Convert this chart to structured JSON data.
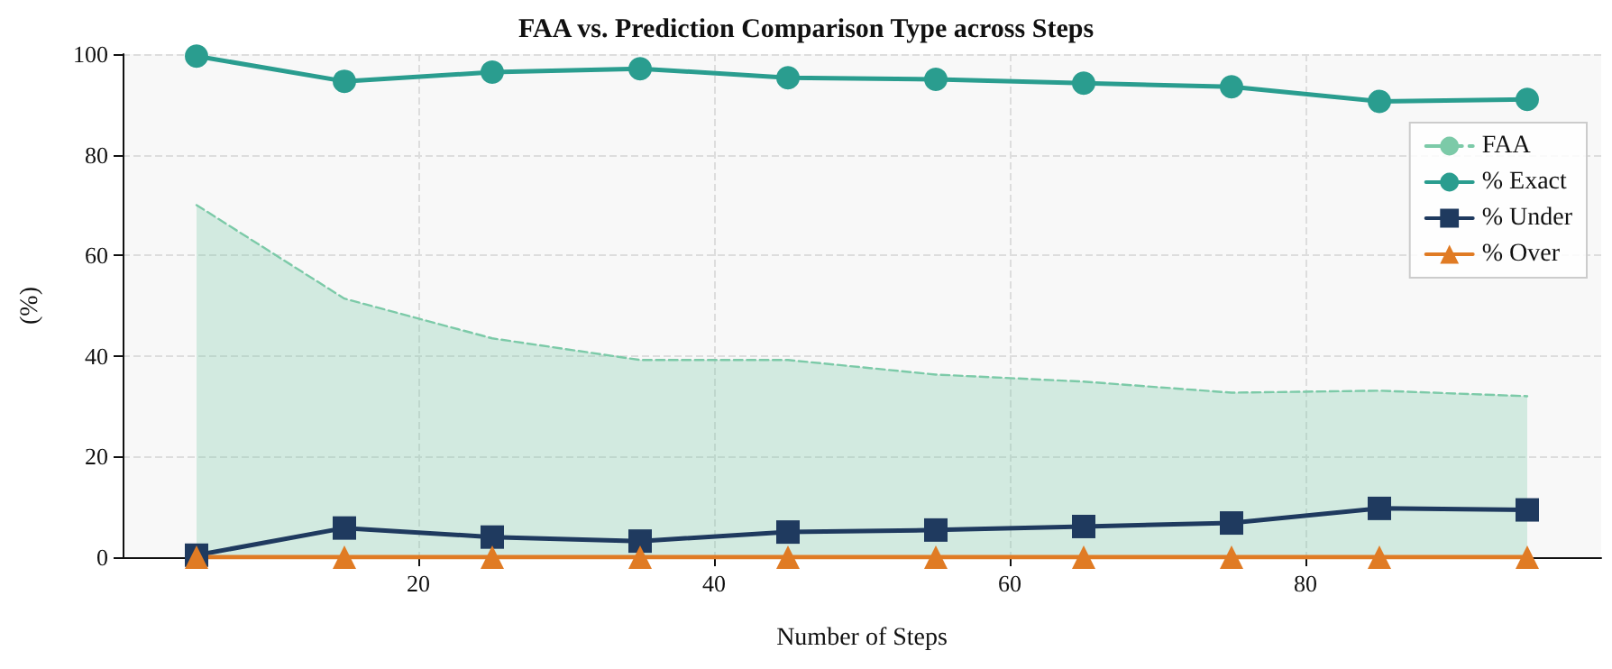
{
  "chart_data": {
    "type": "line",
    "title": "FAA vs. Prediction Comparison Type across Steps",
    "xlabel": "Number of Steps",
    "ylabel": "(%)",
    "x": [
      5,
      15,
      25,
      35,
      45,
      55,
      65,
      75,
      85,
      95
    ],
    "series": [
      {
        "name": "FAA",
        "type": "area",
        "color": "#7ccaa8",
        "line_style": "dashed",
        "marker": "none",
        "values": [
          70,
          51.4,
          43.5,
          39.2,
          39.2,
          36.3,
          34.9,
          32.7,
          33.1,
          32
        ]
      },
      {
        "name": "% Exact",
        "color": "#2a9d8f",
        "marker": "circle",
        "line_style": "solid",
        "values": [
          99.6,
          94.6,
          96.4,
          97.1,
          95.3,
          95,
          94.2,
          93.5,
          90.6,
          91
        ]
      },
      {
        "name": "% Under",
        "color": "#1f3a5f",
        "marker": "square",
        "line_style": "solid",
        "values": [
          0.4,
          5.8,
          4,
          3.2,
          5,
          5.4,
          6.1,
          6.8,
          9.7,
          9.4
        ]
      },
      {
        "name": "% Over",
        "color": "#e07b24",
        "marker": "triangle",
        "line_style": "solid",
        "values": [
          0,
          0,
          0,
          0,
          0,
          0,
          0,
          0,
          0,
          0
        ]
      }
    ],
    "xlim": [
      0,
      100
    ],
    "xticks": [
      20,
      40,
      60,
      80
    ],
    "ylim": [
      0,
      100
    ],
    "yticks": [
      0,
      20,
      40,
      60,
      80,
      100
    ],
    "grid": true,
    "legend": "top right"
  }
}
